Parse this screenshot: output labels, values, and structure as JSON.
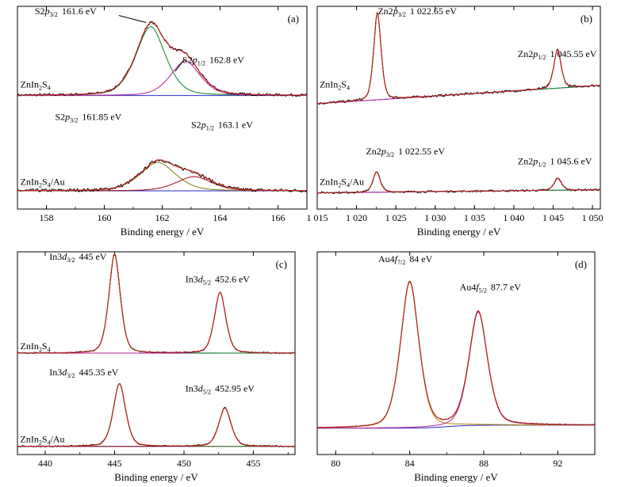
{
  "figure": {
    "xlabel": "Binding energy / eV",
    "panels": [
      {
        "id": "a",
        "letter": "(a)",
        "chart_data": {
          "type": "line",
          "xlim": [
            157,
            167
          ],
          "ylim": [
            0,
            1
          ],
          "xticks": [
            158,
            160,
            162,
            164,
            166
          ],
          "xlabel": "Binding energy / eV",
          "grid": false,
          "traces": [
            {
              "name": "ZnIn2S4",
              "offset": 0.56,
              "baseline": [
                0.0,
                0.0
              ],
              "noise": 0.006,
              "peaks": [
                {
                  "x0": 161.6,
                  "a": 0.34,
                  "w": 0.46
                },
                {
                  "x0": 162.8,
                  "a": 0.17,
                  "w": 0.46
                }
              ]
            },
            {
              "name": "ZnIn2S4/Au",
              "offset": 0.09,
              "baseline": [
                0.0,
                0.0
              ],
              "noise": 0.008,
              "peaks": [
                {
                  "x0": 161.85,
                  "a": 0.14,
                  "w": 0.55
                },
                {
                  "x0": 163.1,
                  "a": 0.07,
                  "w": 0.55
                }
              ]
            }
          ],
          "sample_labels": [
            {
              "parts": [
                "ZnIn",
                "2",
                "S",
                "4"
              ],
              "x": 157.1,
              "y": 0.6
            },
            {
              "parts": [
                "ZnIn",
                "2",
                "S",
                "4",
                "/Au"
              ],
              "x": 157.1,
              "y": 0.12
            }
          ],
          "peak_labels": [
            {
              "orbital": "S2",
              "sub": "3/2",
              "value": "161.6 eV",
              "x": 157.6,
              "y": 0.96
            },
            {
              "orbital": "S2",
              "sub": "1/2",
              "value": "162.8 eV",
              "x": 162.7,
              "y": 0.72
            },
            {
              "orbital": "S2",
              "sub": "3/2",
              "value": "161.85 eV",
              "x": 158.3,
              "y": 0.44
            },
            {
              "orbital": "S2",
              "sub": "1/2",
              "value": "163.1 eV",
              "x": 163.0,
              "y": 0.4
            }
          ]
        }
      },
      {
        "id": "b",
        "letter": "(b)",
        "chart_data": {
          "type": "line",
          "xlim": [
            1015,
            1051
          ],
          "ylim": [
            0,
            1
          ],
          "xticks": [
            1015,
            1020,
            1025,
            1030,
            1035,
            1040,
            1045,
            1050
          ],
          "xtick_labels": [
            "1 015",
            "1 020",
            "1 025",
            "1 030",
            "1 035",
            "1 040",
            "1 045",
            "1 050"
          ],
          "xlabel": "Binding energy / eV",
          "grid": false,
          "traces": [
            {
              "name": "ZnIn2S4",
              "offset": 0.52,
              "baseline": [
                0.0,
                0.09
              ],
              "noise": 0.006,
              "peaks": [
                {
                  "x0": 1022.65,
                  "a": 0.43,
                  "w": 0.42
                },
                {
                  "x0": 1045.55,
                  "a": 0.19,
                  "w": 0.42
                }
              ]
            },
            {
              "name": "ZnIn2S4/Au",
              "offset": 0.08,
              "baseline": [
                0.0,
                0.015
              ],
              "noise": 0.005,
              "peaks": [
                {
                  "x0": 1022.55,
                  "a": 0.1,
                  "w": 0.42
                },
                {
                  "x0": 1045.6,
                  "a": 0.06,
                  "w": 0.42
                }
              ]
            }
          ],
          "sample_labels": [
            {
              "parts": [
                "ZnIn",
                "2",
                "S",
                "4"
              ],
              "x": 1015.3,
              "y": 0.6
            },
            {
              "parts": [
                "ZnIn",
                "2",
                "S",
                "4",
                "/Au"
              ],
              "x": 1015.3,
              "y": 0.12
            }
          ],
          "peak_labels": [
            {
              "orbital": "Zn2",
              "sub": "3/2",
              "value": "1 022.65 eV",
              "x": 1022.7,
              "y": 0.96
            },
            {
              "orbital": "Zn2",
              "sub": "1/2",
              "value": "1 045.55 eV",
              "x": 1040.5,
              "y": 0.75
            },
            {
              "orbital": "Zn2",
              "sub": "3/2",
              "value": "1 022.55 eV",
              "x": 1021.2,
              "y": 0.27
            },
            {
              "orbital": "Zn2",
              "sub": "1/2",
              "value": "1 045.6 eV",
              "x": 1040.5,
              "y": 0.22
            }
          ]
        }
      },
      {
        "id": "c",
        "letter": "(c)",
        "chart_data": {
          "type": "line",
          "xlim": [
            438,
            458
          ],
          "ylim": [
            0,
            1
          ],
          "xticks": [
            440,
            445,
            450,
            455
          ],
          "xlabel": "Binding energy / eV",
          "grid": false,
          "traces": [
            {
              "name": "ZnIn2S4",
              "offset": 0.5,
              "baseline": [
                0.0,
                0.0
              ],
              "noise": 0.003,
              "peaks": [
                {
                  "x0": 445.0,
                  "a": 0.49,
                  "w": 0.37
                },
                {
                  "x0": 452.6,
                  "a": 0.3,
                  "w": 0.37
                }
              ]
            },
            {
              "name": "ZnIn2S4/Au",
              "offset": 0.04,
              "baseline": [
                0.0,
                0.0
              ],
              "noise": 0.003,
              "peaks": [
                {
                  "x0": 445.35,
                  "a": 0.31,
                  "w": 0.4
                },
                {
                  "x0": 452.95,
                  "a": 0.19,
                  "w": 0.4
                }
              ]
            }
          ],
          "sample_labels": [
            {
              "parts": [
                "ZnIn",
                "2",
                "S",
                "4"
              ],
              "x": 438.2,
              "y": 0.52
            },
            {
              "parts": [
                "ZnIn",
                "2",
                "S",
                "4",
                "/Au"
              ],
              "x": 438.2,
              "y": 0.06
            }
          ],
          "peak_labels": [
            {
              "orbital": "In3",
              "sub": "3/2",
              "value": "445 eV",
              "x": 440.3,
              "y": 0.96
            },
            {
              "orbital": "In3",
              "sub": "5/2",
              "value": "452.6 eV",
              "x": 450.1,
              "y": 0.85
            },
            {
              "orbital": "In3",
              "sub": "3/2",
              "value": "445.35 eV",
              "x": 440.3,
              "y": 0.39
            },
            {
              "orbital": "In3",
              "sub": "5/2",
              "value": "452.95 eV",
              "x": 450.1,
              "y": 0.31
            }
          ]
        }
      },
      {
        "id": "d",
        "letter": "(d)",
        "chart_data": {
          "type": "line",
          "xlim": [
            79,
            94
          ],
          "ylim": [
            0,
            1
          ],
          "xticks": [
            80,
            84,
            88,
            92
          ],
          "xlabel": "Binding energy / eV",
          "grid": false,
          "traces": [
            {
              "name": "",
              "offset": 0.13,
              "baseline": [
                0.0,
                0.0
              ],
              "noise": 0.002,
              "step": {
                "x0": 86.0,
                "h": 0.015,
                "w": 0.6
              },
              "peaks": [
                {
                  "x0": 84.0,
                  "a": 0.72,
                  "w": 0.45
                },
                {
                  "x0": 87.7,
                  "a": 0.56,
                  "w": 0.45
                }
              ]
            }
          ],
          "sample_labels": [],
          "peak_labels": [
            {
              "orbital": "Au4",
              "sub": "7/2",
              "value": "84 eV",
              "x": 82.3,
              "y": 0.95
            },
            {
              "orbital": "Au4",
              "sub": "5/2",
              "value": "87.7 eV",
              "x": 86.7,
              "y": 0.81
            }
          ]
        }
      }
    ]
  },
  "colors": {
    "raw": "#000000",
    "raw_b": "#111111",
    "envelope": "#e0231d",
    "bg": "#2a2ac8",
    "p32_a": "#1e8a3a",
    "p12_a": "#b5349c",
    "p32_au": "#8a8a1e",
    "p12_au": "#a0222a",
    "fit_b": "#1e8a3a",
    "fit_b2": "#b5349c",
    "c_fit": "#1e8a3a",
    "c_fit2": "#c0359c",
    "d_p1": "#b99018",
    "d_p2": "#c0359c",
    "d_bg": "#2a2ac8"
  }
}
